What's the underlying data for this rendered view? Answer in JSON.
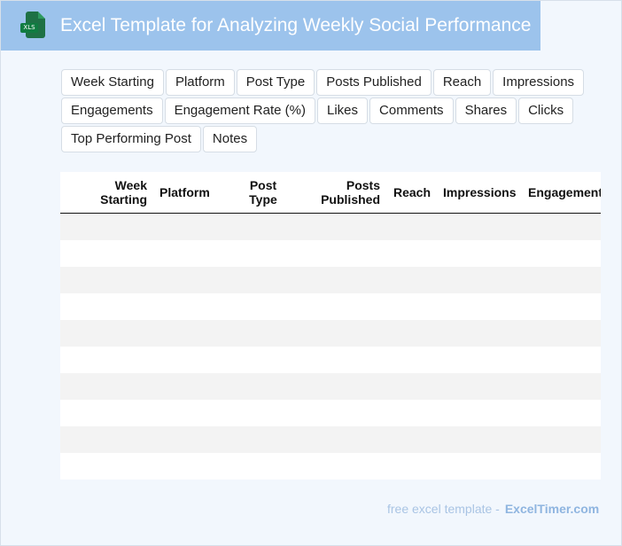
{
  "title": "Excel Template for Analyzing Weekly Social Performance",
  "file_icon_label": "XLS",
  "chips": [
    "Week Starting",
    "Platform",
    "Post Type",
    "Posts Published",
    "Reach",
    "Impressions",
    "Engagements",
    "Engagement Rate (%)",
    "Likes",
    "Comments",
    "Shares",
    "Clicks",
    "Top Performing Post",
    "Notes"
  ],
  "table": {
    "headers": [
      "Week\nStarting",
      "Platform",
      "Post\nType",
      "Posts\nPublished",
      "Reach",
      "Impressions",
      "Engagement"
    ],
    "row_count": 10
  },
  "footer": {
    "text": "free excel template -",
    "brand": "ExcelTimer.com"
  },
  "colors": {
    "title_bar": "#9cc3ec",
    "page_bg": "#f2f7fd",
    "excel_green": "#1e7145",
    "row_shade": "#f3f3f3"
  },
  "icons": [
    "xls-file-icon"
  ]
}
